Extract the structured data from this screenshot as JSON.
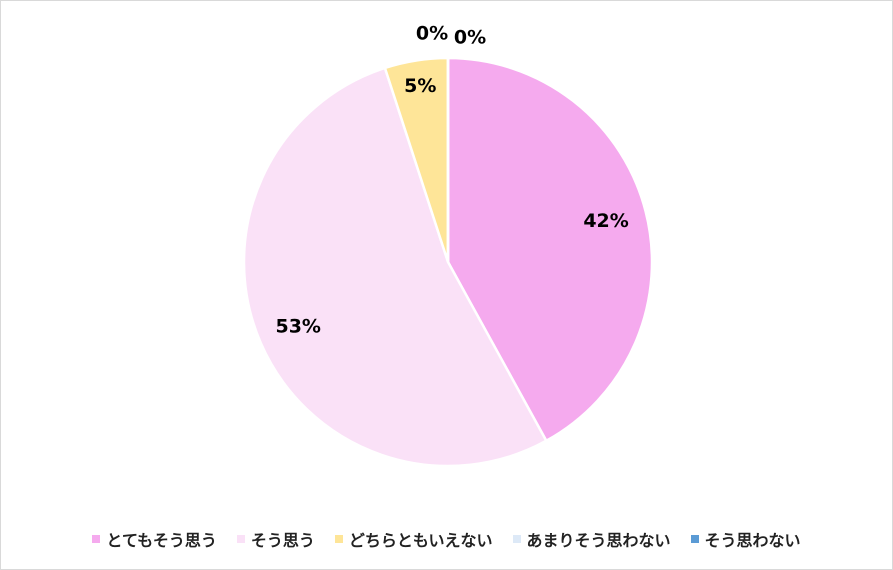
{
  "chart_data": {
    "type": "pie",
    "categories": [
      "とてもそう思う",
      "そう思う",
      "どちらともいえない",
      "あまりそう思わない",
      "そう思わない"
    ],
    "values": [
      42,
      53,
      5,
      0,
      0
    ],
    "value_labels": [
      "42%",
      "53%",
      "5%",
      "0%",
      "0%"
    ],
    "colors": [
      "#f5aaee",
      "#fae1f7",
      "#fee598",
      "#dde9f7",
      "#5b9bd5"
    ]
  }
}
